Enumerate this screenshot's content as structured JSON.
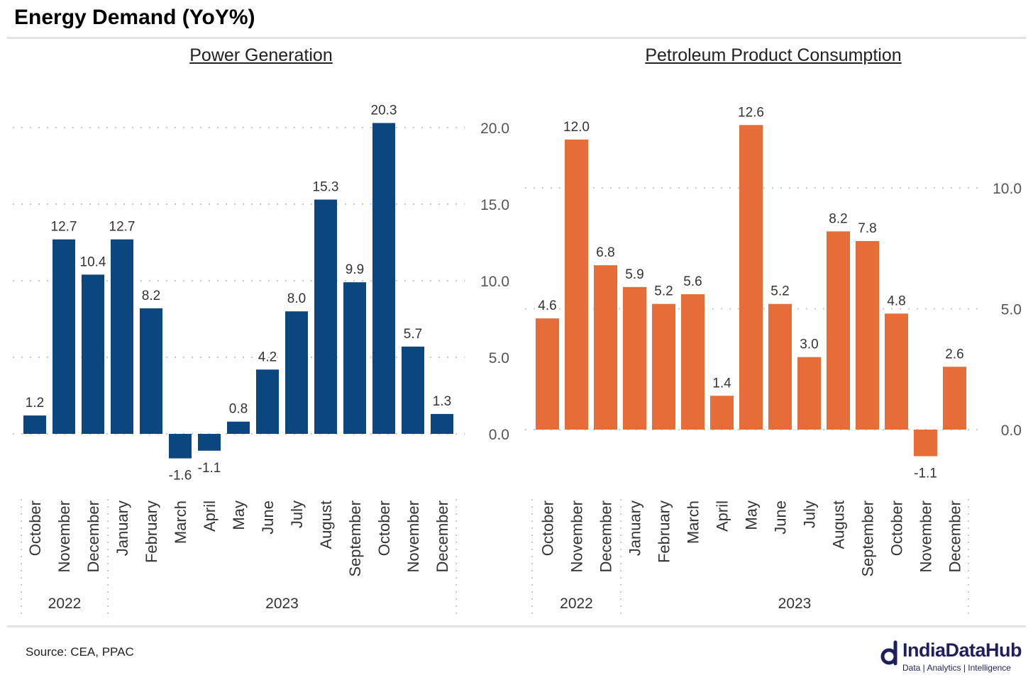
{
  "title": "Energy Demand (YoY%)",
  "source": "Source: CEA, PPAC",
  "logo": {
    "name": "IndiaDataHub",
    "tagline": "Data | Analytics | Intelligence"
  },
  "chart_data": [
    {
      "type": "bar",
      "title": "Power Generation",
      "color": "#0b467f",
      "categories": [
        "October",
        "November",
        "December",
        "January",
        "February",
        "March",
        "April",
        "May",
        "June",
        "July",
        "August",
        "September",
        "October",
        "November",
        "December"
      ],
      "years": [
        {
          "label": "2022",
          "count": 3
        },
        {
          "label": "2023",
          "count": 12
        }
      ],
      "values": [
        1.2,
        12.7,
        10.4,
        12.7,
        8.2,
        -1.6,
        -1.1,
        0.8,
        4.2,
        8.0,
        15.3,
        9.9,
        20.3,
        5.7,
        1.3
      ],
      "yticks": [
        "0.0",
        "5.0",
        "10.0",
        "15.0",
        "20.0"
      ],
      "ylim": [
        -2.5,
        21
      ],
      "xlabel": "",
      "ylabel": "",
      "grid": true
    },
    {
      "type": "bar",
      "title": "Petroleum Product Consumption",
      "color": "#e66d38",
      "categories": [
        "October",
        "November",
        "December",
        "January",
        "February",
        "March",
        "April",
        "May",
        "June",
        "July",
        "August",
        "September",
        "October",
        "November",
        "December"
      ],
      "years": [
        {
          "label": "2022",
          "count": 3
        },
        {
          "label": "2023",
          "count": 12
        }
      ],
      "values": [
        4.6,
        12.0,
        6.8,
        5.9,
        5.2,
        5.6,
        1.4,
        12.6,
        5.2,
        3.0,
        8.2,
        7.8,
        4.8,
        -1.1,
        2.6
      ],
      "yticks": [
        "0.0",
        "5.0",
        "10.0"
      ],
      "ylim": [
        -1.5,
        13
      ],
      "xlabel": "",
      "ylabel": "",
      "grid": true
    }
  ]
}
